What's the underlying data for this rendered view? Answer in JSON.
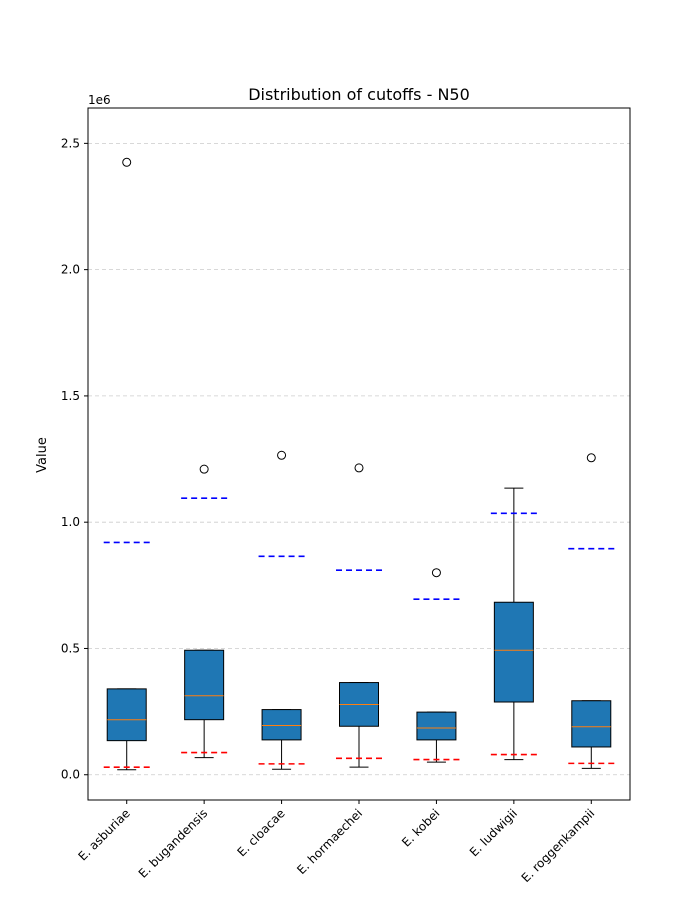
{
  "chart_data": {
    "type": "box",
    "title": "Distribution of cutoffs - N50",
    "xlabel": "",
    "ylabel": "Value",
    "y_scale_label": "1e6",
    "ylim": [
      -100000,
      2640000
    ],
    "yticks": [
      0,
      500000,
      1000000,
      1500000,
      2000000,
      2500000
    ],
    "ytick_labels": [
      "0.0",
      "0.5",
      "1.0",
      "1.5",
      "2.0",
      "2.5"
    ],
    "grid": "y-dashed",
    "colors": {
      "box_fill": "#1f77b4",
      "median": "#ff7f0e",
      "upper_cutoff": "#0000ff",
      "lower_cutoff": "#ff0000",
      "grid": "#cccccc"
    },
    "categories": [
      "E. asburiae",
      "E. bugandensis",
      "E. cloacae",
      "E. hormaechei",
      "E. kobei",
      "E. ludwigii",
      "E. roggenkampii"
    ],
    "boxes": [
      {
        "whisker_low": 20000,
        "q1": 135000,
        "median": 218000,
        "q3": 340000,
        "whisker_high": 340000,
        "outliers": [
          2425000
        ],
        "upper_cutoff": 920000,
        "lower_cutoff": 30000
      },
      {
        "whisker_low": 68000,
        "q1": 218000,
        "median": 313000,
        "q3": 493000,
        "whisker_high": 493000,
        "outliers": [
          1210000
        ],
        "upper_cutoff": 1095000,
        "lower_cutoff": 88000
      },
      {
        "whisker_low": 22000,
        "q1": 138000,
        "median": 195000,
        "q3": 258000,
        "whisker_high": 258000,
        "outliers": [
          1265000
        ],
        "upper_cutoff": 865000,
        "lower_cutoff": 43000
      },
      {
        "whisker_low": 30000,
        "q1": 192000,
        "median": 278000,
        "q3": 365000,
        "whisker_high": 365000,
        "outliers": [
          1215000
        ],
        "upper_cutoff": 810000,
        "lower_cutoff": 65000
      },
      {
        "whisker_low": 50000,
        "q1": 138000,
        "median": 185000,
        "q3": 248000,
        "whisker_high": 248000,
        "outliers": [
          800000
        ],
        "upper_cutoff": 695000,
        "lower_cutoff": 60000
      },
      {
        "whisker_low": 60000,
        "q1": 288000,
        "median": 493000,
        "q3": 683000,
        "whisker_high": 1135000,
        "outliers": [],
        "upper_cutoff": 1035000,
        "lower_cutoff": 80000
      },
      {
        "whisker_low": 25000,
        "q1": 110000,
        "median": 190000,
        "q3": 293000,
        "whisker_high": 293000,
        "outliers": [
          1255000
        ],
        "upper_cutoff": 895000,
        "lower_cutoff": 45000
      }
    ]
  }
}
